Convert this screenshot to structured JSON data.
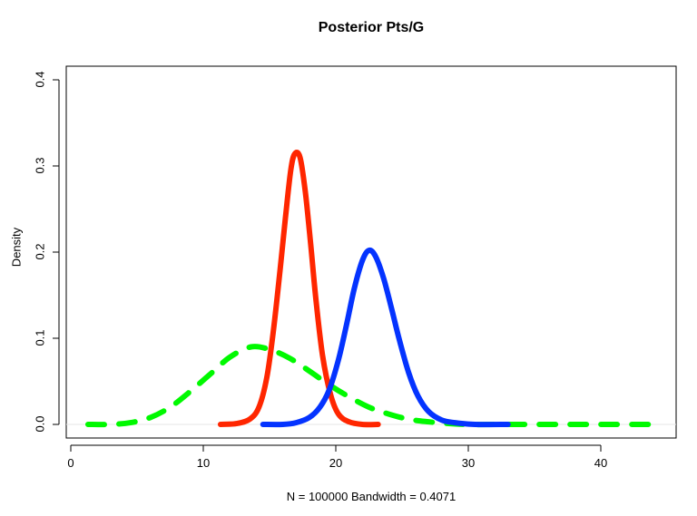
{
  "chart_data": {
    "type": "line",
    "title": "Posterior Pts/G",
    "xlabel": "N = 100000   Bandwidth = 0.4071",
    "ylabel": "Density",
    "xlim": [
      -0.4,
      45.4
    ],
    "ylim": [
      -0.016,
      0.4
    ],
    "x_ticks": [
      0,
      10,
      20,
      30,
      40
    ],
    "y_ticks": [
      0.0,
      0.1,
      0.2,
      0.3,
      0.4
    ],
    "x_tick_labels": [
      "0",
      "10",
      "20",
      "30",
      "40"
    ],
    "y_tick_labels": [
      "0.0",
      "0.1",
      "0.2",
      "0.3",
      "0.4"
    ],
    "grid": false,
    "legend": null,
    "series": [
      {
        "name": "red",
        "color": "#ff2600",
        "line_style": "solid",
        "line_width": 6,
        "x": [
          11.3,
          12.5,
          13.5,
          14.2,
          14.8,
          15.3,
          15.8,
          16.2,
          16.6,
          16.9,
          17.3,
          17.7,
          18.1,
          18.5,
          19.0,
          19.6,
          20.2,
          21.0,
          22.0,
          23.2
        ],
        "y": [
          0.0,
          0.001,
          0.006,
          0.02,
          0.055,
          0.11,
          0.18,
          0.24,
          0.295,
          0.314,
          0.31,
          0.27,
          0.21,
          0.145,
          0.08,
          0.035,
          0.012,
          0.003,
          0.0,
          0.0
        ]
      },
      {
        "name": "blue",
        "color": "#0433ff",
        "line_style": "solid",
        "line_width": 6,
        "x": [
          14.5,
          16.0,
          17.0,
          18.0,
          18.8,
          19.5,
          20.2,
          20.8,
          21.4,
          22.0,
          22.5,
          23.0,
          23.6,
          24.2,
          24.8,
          25.5,
          26.2,
          27.0,
          28.0,
          29.0,
          30.5,
          33.0
        ],
        "y": [
          0.0,
          0.0,
          0.002,
          0.008,
          0.02,
          0.04,
          0.075,
          0.115,
          0.158,
          0.19,
          0.202,
          0.195,
          0.17,
          0.135,
          0.098,
          0.06,
          0.033,
          0.015,
          0.005,
          0.002,
          0.0,
          0.0
        ]
      },
      {
        "name": "green",
        "color": "#00f900",
        "line_style": "dashed",
        "line_width": 6,
        "x": [
          1.3,
          3.0,
          4.5,
          6.0,
          7.5,
          9.0,
          10.5,
          12.0,
          13.6,
          15.0,
          16.5,
          18.0,
          19.5,
          21.0,
          22.5,
          24.0,
          25.5,
          27.0,
          28.5,
          30.0,
          32.0,
          35.0,
          38.0,
          41.0,
          44.0
        ],
        "y": [
          0.0,
          0.0,
          0.002,
          0.008,
          0.02,
          0.038,
          0.058,
          0.078,
          0.09,
          0.087,
          0.077,
          0.062,
          0.046,
          0.032,
          0.02,
          0.012,
          0.006,
          0.003,
          0.001,
          0.0,
          0.0,
          0.0,
          0.0,
          0.0,
          0.0
        ]
      }
    ]
  },
  "axes": {
    "title": "Posterior Pts/G",
    "xlabel": "N = 100000   Bandwidth = 0.4071",
    "ylabel": "Density"
  }
}
